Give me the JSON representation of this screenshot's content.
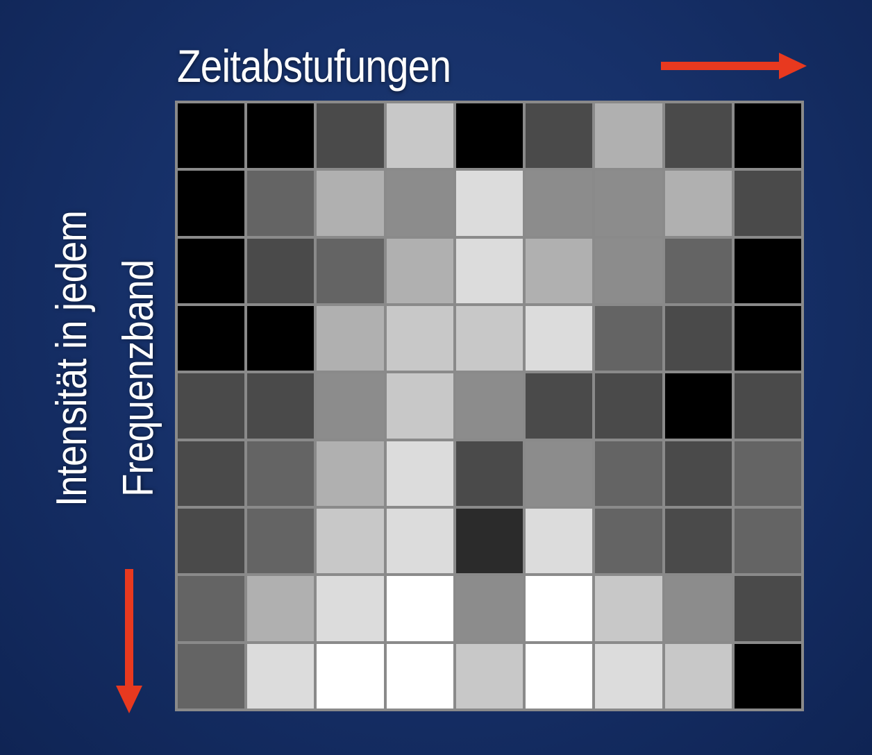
{
  "title": "Zeitabstufungen",
  "ylabel_line1": "Intensität in jedem",
  "ylabel_line2": "Frequenzband",
  "colors": {
    "background": "#17316a",
    "arrow": "#e8391f",
    "grid_line": "#8a8a8a",
    "text": "#ffffff"
  },
  "grid": {
    "rows": 9,
    "cols": 9,
    "cells": [
      [
        "#000000",
        "#000000",
        "#4a4a4a",
        "#c8c8c8",
        "#000000",
        "#4a4a4a",
        "#b0b0b0",
        "#4a4a4a",
        "#000000"
      ],
      [
        "#000000",
        "#646464",
        "#b0b0b0",
        "#8c8c8c",
        "#dcdcdc",
        "#8c8c8c",
        "#8c8c8c",
        "#b0b0b0",
        "#4a4a4a"
      ],
      [
        "#000000",
        "#4a4a4a",
        "#646464",
        "#b0b0b0",
        "#dcdcdc",
        "#b0b0b0",
        "#8c8c8c",
        "#646464",
        "#000000"
      ],
      [
        "#000000",
        "#000000",
        "#b0b0b0",
        "#c8c8c8",
        "#c8c8c8",
        "#dcdcdc",
        "#646464",
        "#4a4a4a",
        "#000000"
      ],
      [
        "#4a4a4a",
        "#4a4a4a",
        "#8c8c8c",
        "#c8c8c8",
        "#8c8c8c",
        "#4a4a4a",
        "#4a4a4a",
        "#000000",
        "#4a4a4a"
      ],
      [
        "#4a4a4a",
        "#646464",
        "#b0b0b0",
        "#dcdcdc",
        "#4a4a4a",
        "#8c8c8c",
        "#646464",
        "#4a4a4a",
        "#646464"
      ],
      [
        "#4a4a4a",
        "#646464",
        "#c8c8c8",
        "#dcdcdc",
        "#2b2b2b",
        "#dcdcdc",
        "#646464",
        "#4a4a4a",
        "#646464"
      ],
      [
        "#646464",
        "#b0b0b0",
        "#dcdcdc",
        "#ffffff",
        "#8c8c8c",
        "#ffffff",
        "#c8c8c8",
        "#8c8c8c",
        "#4a4a4a"
      ],
      [
        "#646464",
        "#dcdcdc",
        "#ffffff",
        "#ffffff",
        "#c8c8c8",
        "#ffffff",
        "#dcdcdc",
        "#c8c8c8",
        "#000000"
      ]
    ]
  }
}
